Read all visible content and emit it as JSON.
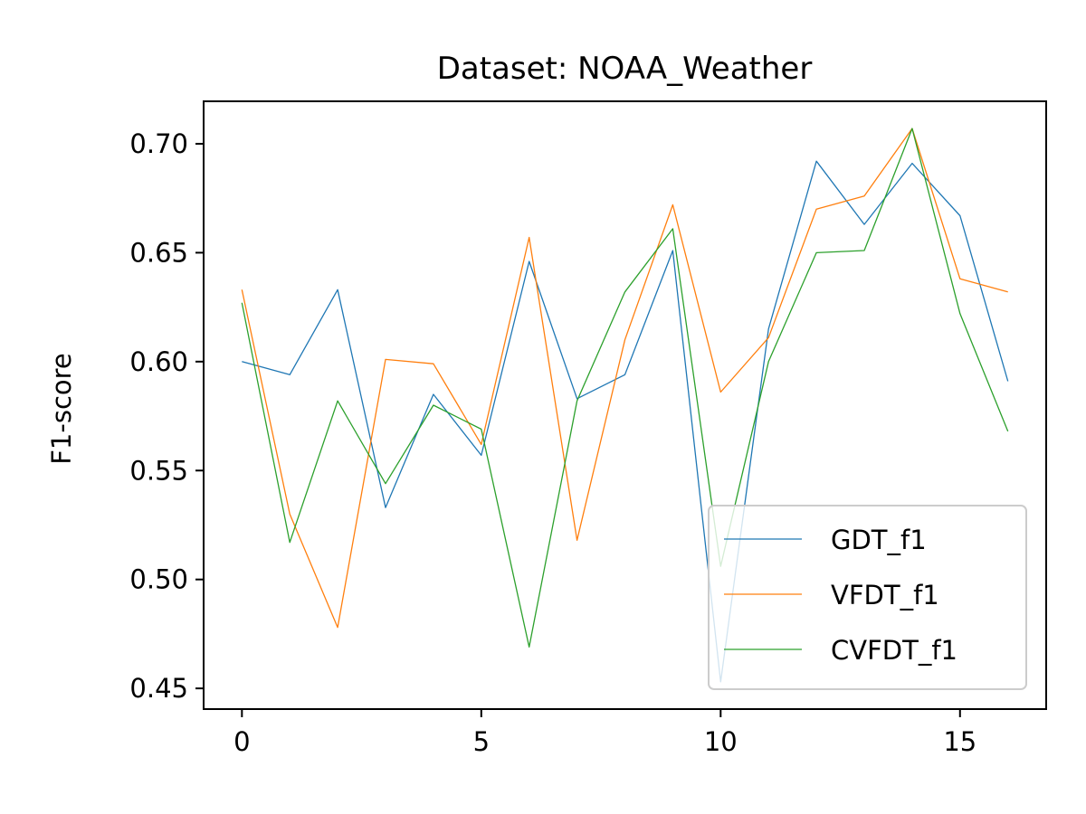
{
  "chart_data": {
    "type": "line",
    "title": "Dataset: NOAA_Weather",
    "xlabel": "",
    "ylabel": "F1-score",
    "x": [
      0,
      1,
      2,
      3,
      4,
      5,
      6,
      7,
      8,
      9,
      10,
      11,
      12,
      13,
      14,
      15,
      16
    ],
    "xlim": [
      -0.8,
      16.8
    ],
    "ylim": [
      0.4405,
      0.7195
    ],
    "xticks": [
      0,
      5,
      10,
      15
    ],
    "xtick_labels": [
      "0",
      "5",
      "10",
      "15"
    ],
    "yticks": [
      0.45,
      0.5,
      0.55,
      0.6,
      0.65,
      0.7
    ],
    "ytick_labels": [
      "0.45",
      "0.50",
      "0.55",
      "0.60",
      "0.65",
      "0.70"
    ],
    "grid": false,
    "legend_position": "lower-right",
    "series": [
      {
        "name": "GDT_f1",
        "color": "#1f77b4",
        "values": [
          0.6,
          0.594,
          0.633,
          0.533,
          0.585,
          0.557,
          0.646,
          0.583,
          0.594,
          0.651,
          0.453,
          0.615,
          0.692,
          0.663,
          0.691,
          0.667,
          0.591
        ]
      },
      {
        "name": "VFDT_f1",
        "color": "#ff7f0e",
        "values": [
          0.633,
          0.53,
          0.478,
          0.601,
          0.599,
          0.562,
          0.657,
          0.518,
          0.61,
          0.672,
          0.586,
          0.611,
          0.67,
          0.676,
          0.707,
          0.638,
          0.632
        ]
      },
      {
        "name": "CVFDT_f1",
        "color": "#2ca02c",
        "values": [
          0.627,
          0.517,
          0.582,
          0.544,
          0.58,
          0.569,
          0.469,
          0.582,
          0.632,
          0.661,
          0.506,
          0.6,
          0.65,
          0.651,
          0.707,
          0.622,
          0.568
        ]
      }
    ]
  }
}
